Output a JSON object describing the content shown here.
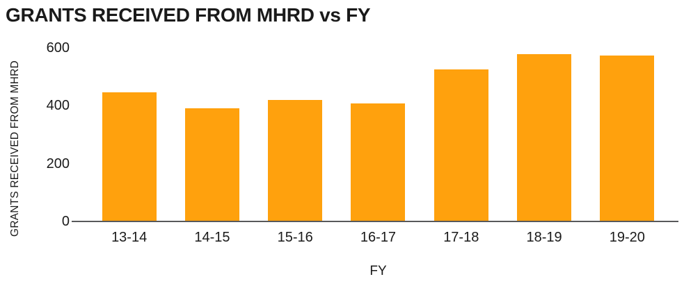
{
  "chart_data": {
    "type": "bar",
    "title": "GRANTS RECEIVED FROM MHRD vs FY",
    "xlabel": "FY",
    "ylabel": "GRANTS RECEIVED FROM MHRD",
    "categories": [
      "13-14",
      "14-15",
      "15-16",
      "16-17",
      "17-18",
      "18-19",
      "19-20"
    ],
    "values": [
      445,
      390,
      417,
      406,
      524,
      576,
      571
    ],
    "yticks": [
      0,
      200,
      400,
      600
    ],
    "ylim": [
      0,
      600
    ],
    "grid": false,
    "legend": false,
    "bar_color": "#FFA10D",
    "axis_line_color": "#58595B",
    "text_color": "#1A1A1A",
    "background_color": "#FFFFFF"
  }
}
